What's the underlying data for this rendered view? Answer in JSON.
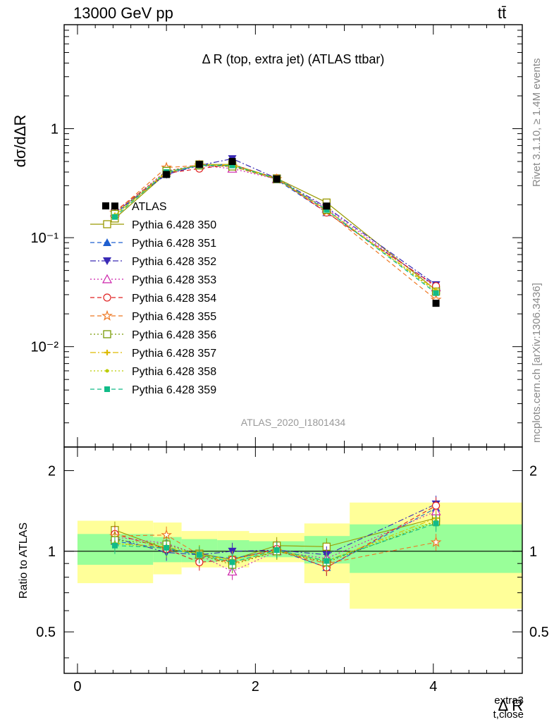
{
  "header": {
    "energy_label": "13000 GeV pp",
    "process_label": "tt̄"
  },
  "side_text": {
    "rivet": "Rivet 3.1.10, ≥ 1.4M events",
    "mcplots": "mcplots.cern.ch [arXiv:1306.3436]"
  },
  "chart_data": [
    {
      "type": "scatter",
      "panel": "main",
      "title": "Δ R (top, extra jet) (ATLAS ttbar)",
      "xlabel": "Δ R",
      "xlabel_sup": "extra3",
      "xlabel_sub": "t,close",
      "ylabel": "dσ/dΔR",
      "yscale": "log",
      "xlim": [
        -0.15,
        5.0
      ],
      "ylim": [
        0.0012,
        9.0
      ],
      "ytick_labels": [
        "10⁻²",
        "10⁻¹",
        "1"
      ],
      "xtick_labels": [
        "0",
        "2",
        "4"
      ],
      "analysis_tag": "ATLAS_2020_I1801434",
      "legend_position": "left",
      "x": [
        0.42,
        1.0,
        1.37,
        1.74,
        2.24,
        2.8,
        4.03
      ],
      "data": {
        "name": "ATLAS",
        "y": [
          0.195,
          0.38,
          0.47,
          0.5,
          0.345,
          0.195,
          0.025
        ],
        "bin_edges": [
          0.0,
          0.85,
          1.17,
          1.57,
          1.93,
          2.55,
          3.06,
          5.0
        ]
      },
      "series": [
        {
          "name": "Pythia 6.428 350",
          "color": "#999900",
          "marker": "open-square",
          "line": "solid",
          "y": [
            0.15,
            0.39,
            0.47,
            0.47,
            0.35,
            0.21,
            0.033
          ]
        },
        {
          "name": "Pythia 6.428 351",
          "color": "#1f5fd0",
          "marker": "filled-triangle-up",
          "line": "dashed",
          "y": [
            0.165,
            0.39,
            0.46,
            0.47,
            0.34,
            0.17,
            0.036
          ]
        },
        {
          "name": "Pythia 6.428 352",
          "color": "#3a2ab5",
          "marker": "filled-triangle-down",
          "line": "dashdot",
          "y": [
            0.17,
            0.38,
            0.46,
            0.53,
            0.35,
            0.19,
            0.037
          ]
        },
        {
          "name": "Pythia 6.428 353",
          "color": "#cc22aa",
          "marker": "open-triangle-up",
          "line": "dotted",
          "y": [
            0.17,
            0.41,
            0.46,
            0.43,
            0.345,
            0.185,
            0.035
          ]
        },
        {
          "name": "Pythia 6.428 354",
          "color": "#e02020",
          "marker": "open-circle",
          "line": "dashed",
          "y": [
            0.175,
            0.39,
            0.43,
            0.47,
            0.35,
            0.17,
            0.036
          ]
        },
        {
          "name": "Pythia 6.428 355",
          "color": "#ee7722",
          "marker": "open-star",
          "line": "dashed",
          "y": [
            0.17,
            0.44,
            0.46,
            0.45,
            0.345,
            0.175,
            0.027
          ]
        },
        {
          "name": "Pythia 6.428 356",
          "color": "#779900",
          "marker": "open-square",
          "line": "dotted",
          "y": [
            0.165,
            0.41,
            0.46,
            0.45,
            0.345,
            0.18,
            0.032
          ]
        },
        {
          "name": "Pythia 6.428 357",
          "color": "#ddbb00",
          "marker": "filled-cross",
          "line": "dashdot",
          "y": [
            0.16,
            0.4,
            0.46,
            0.47,
            0.35,
            0.18,
            0.033
          ]
        },
        {
          "name": "Pythia 6.428 358",
          "color": "#bbcc00",
          "marker": "filled-dot",
          "line": "dotted",
          "y": [
            0.16,
            0.39,
            0.47,
            0.46,
            0.345,
            0.18,
            0.032
          ]
        },
        {
          "name": "Pythia 6.428 359",
          "color": "#11bb88",
          "marker": "filled-square",
          "line": "dashed",
          "y": [
            0.155,
            0.4,
            0.46,
            0.46,
            0.35,
            0.18,
            0.031
          ]
        }
      ]
    },
    {
      "type": "scatter",
      "panel": "ratio",
      "ylabel": "Ratio to ATLAS",
      "ylim": [
        0.35,
        2.45
      ],
      "ytick_labels": [
        "0.5",
        "1",
        "2"
      ],
      "xtick_labels": [
        "0",
        "2",
        "4"
      ],
      "bands": {
        "bin_edges": [
          0.0,
          0.85,
          1.17,
          1.57,
          1.93,
          2.55,
          3.06,
          5.0
        ],
        "inner": [
          [
            0.89,
            1.16
          ],
          [
            0.91,
            1.13
          ],
          [
            0.91,
            1.11
          ],
          [
            0.92,
            1.1
          ],
          [
            0.95,
            1.09
          ],
          [
            0.9,
            1.14
          ],
          [
            0.83,
            1.26
          ]
        ],
        "outer": [
          [
            0.76,
            1.3
          ],
          [
            0.82,
            1.28
          ],
          [
            0.87,
            1.19
          ],
          [
            0.87,
            1.19
          ],
          [
            0.91,
            1.17
          ],
          [
            0.76,
            1.27
          ],
          [
            0.61,
            1.52
          ]
        ],
        "inner_color": "#99ff99",
        "outer_color": "#ffff99"
      },
      "x": [
        0.42,
        1.0,
        1.37,
        1.74,
        2.24,
        2.8,
        4.03
      ],
      "series": [
        {
          "name": "Pythia 6.428 350",
          "y": [
            1.2,
            1.02,
            0.98,
            0.93,
            1.05,
            1.04,
            1.33
          ]
        },
        {
          "name": "Pythia 6.428 351",
          "y": [
            1.09,
            1.02,
            0.97,
            0.94,
            1.01,
            0.87,
            1.45
          ]
        },
        {
          "name": "Pythia 6.428 352",
          "y": [
            1.12,
            0.99,
            0.97,
            1.0,
            1.01,
            0.97,
            1.5
          ]
        },
        {
          "name": "Pythia 6.428 353",
          "y": [
            1.13,
            1.07,
            0.97,
            0.84,
            1.0,
            0.94,
            1.41
          ]
        },
        {
          "name": "Pythia 6.428 354",
          "y": [
            1.16,
            1.02,
            0.91,
            0.93,
            1.02,
            0.87,
            1.48
          ]
        },
        {
          "name": "Pythia 6.428 355",
          "y": [
            1.14,
            1.15,
            0.97,
            0.9,
            1.0,
            0.9,
            1.08
          ]
        },
        {
          "name": "Pythia 6.428 356",
          "y": [
            1.1,
            1.06,
            0.97,
            0.89,
            1.0,
            0.91,
            1.29
          ]
        },
        {
          "name": "Pythia 6.428 357",
          "y": [
            1.07,
            1.04,
            0.97,
            0.93,
            1.01,
            0.92,
            1.33
          ]
        },
        {
          "name": "Pythia 6.428 358",
          "y": [
            1.07,
            1.02,
            0.98,
            0.91,
            1.0,
            0.92,
            1.3
          ]
        },
        {
          "name": "Pythia 6.428 359",
          "y": [
            1.05,
            1.03,
            0.97,
            0.91,
            1.01,
            0.92,
            1.27
          ]
        }
      ]
    }
  ]
}
